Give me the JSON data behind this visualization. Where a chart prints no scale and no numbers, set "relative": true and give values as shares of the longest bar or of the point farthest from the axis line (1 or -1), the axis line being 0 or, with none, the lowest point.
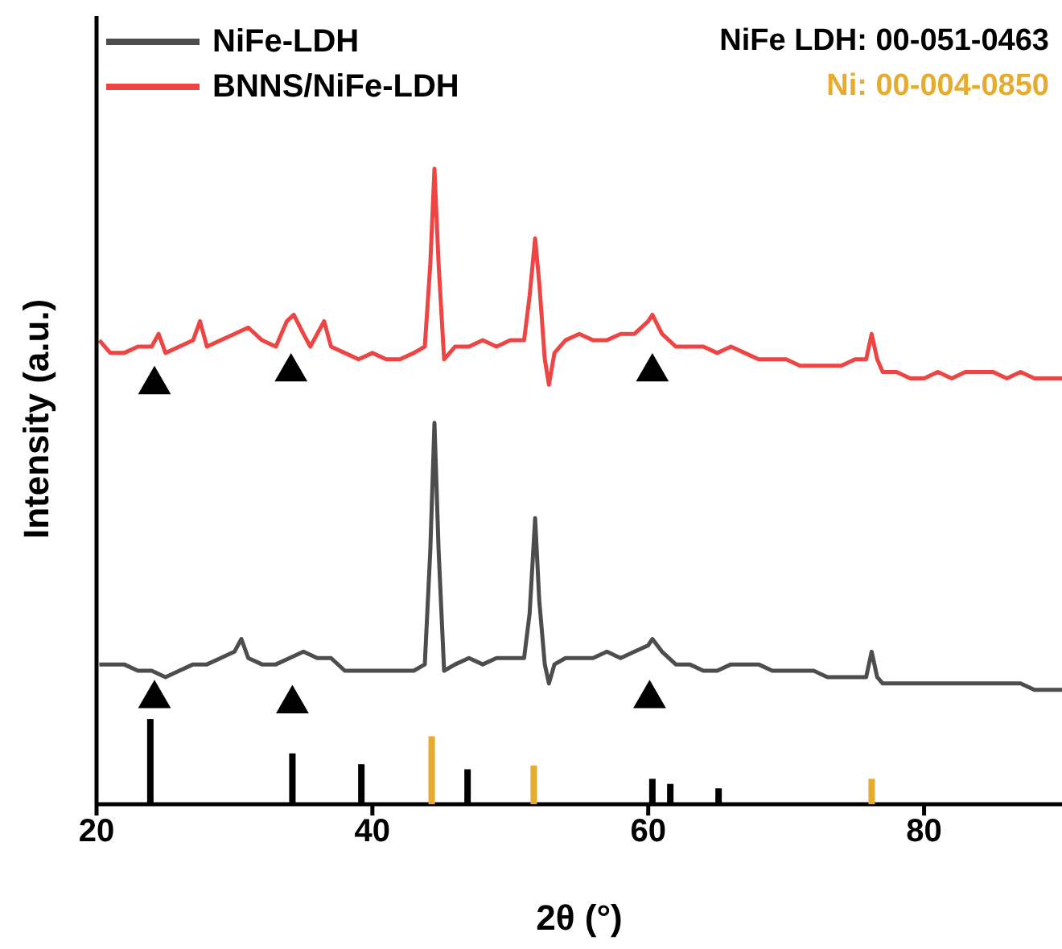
{
  "chart_data": {
    "type": "line",
    "relative": true,
    "xlabel": "2θ (°)",
    "ylabel": "Intensity (a.u.)",
    "xlim": [
      20,
      90
    ],
    "xticks": [
      20,
      40,
      60,
      80
    ],
    "legend": "top left",
    "grid": false,
    "series": [
      {
        "name": "NiFe-LDH",
        "color": "#4d4d4d",
        "x": [
          20.2,
          21,
          22,
          23,
          24,
          25,
          26,
          27,
          28,
          29,
          30,
          30.5,
          31,
          32,
          33,
          34,
          35,
          36,
          37,
          38,
          39,
          40,
          41,
          42,
          43,
          43.8,
          44.2,
          44.5,
          44.8,
          45.2,
          46,
          47,
          48,
          49,
          50,
          51,
          51.4,
          51.8,
          52.1,
          52.5,
          52.8,
          53.2,
          54,
          55,
          56,
          57,
          58,
          59,
          60,
          60.3,
          61,
          62,
          63,
          64,
          65,
          66,
          67,
          68,
          69,
          70,
          71,
          72,
          73,
          74,
          75,
          75.8,
          76.2,
          76.6,
          77,
          78,
          79,
          80,
          81,
          82,
          83,
          84,
          85,
          86,
          87,
          88,
          89,
          90
        ],
        "values": [
          0.22,
          0.22,
          0.22,
          0.21,
          0.21,
          0.2,
          0.21,
          0.22,
          0.22,
          0.23,
          0.24,
          0.26,
          0.23,
          0.22,
          0.22,
          0.23,
          0.24,
          0.23,
          0.23,
          0.21,
          0.21,
          0.21,
          0.21,
          0.21,
          0.21,
          0.22,
          0.4,
          0.6,
          0.4,
          0.21,
          0.22,
          0.23,
          0.22,
          0.23,
          0.23,
          0.23,
          0.3,
          0.45,
          0.32,
          0.22,
          0.19,
          0.22,
          0.23,
          0.23,
          0.23,
          0.24,
          0.23,
          0.24,
          0.25,
          0.26,
          0.24,
          0.22,
          0.22,
          0.21,
          0.21,
          0.22,
          0.22,
          0.22,
          0.21,
          0.21,
          0.21,
          0.21,
          0.2,
          0.2,
          0.2,
          0.2,
          0.24,
          0.2,
          0.19,
          0.19,
          0.19,
          0.19,
          0.19,
          0.19,
          0.19,
          0.19,
          0.19,
          0.19,
          0.19,
          0.18,
          0.18,
          0.18
        ]
      },
      {
        "name": "BNNS/NiFe-LDH",
        "color": "#ef4444",
        "x": [
          20.2,
          21,
          22,
          23,
          24,
          24.5,
          25,
          26,
          27,
          27.5,
          28,
          29,
          30,
          31,
          32,
          33,
          33.8,
          34.3,
          35,
          35.5,
          36.5,
          37,
          38,
          39,
          40,
          41,
          42,
          43,
          43.8,
          44.2,
          44.5,
          44.8,
          45.2,
          46,
          47,
          48,
          49,
          50,
          51,
          51.4,
          51.8,
          52.1,
          52.5,
          52.8,
          53.2,
          54,
          55,
          56,
          57,
          58,
          59,
          60,
          60.3,
          61,
          62,
          63,
          64,
          65,
          66,
          67,
          68,
          69,
          70,
          71,
          72,
          73,
          74,
          75,
          75.8,
          76.2,
          76.6,
          77,
          78,
          79,
          80,
          81,
          82,
          83,
          84,
          85,
          86,
          87,
          88,
          89,
          90
        ],
        "values": [
          0.73,
          0.71,
          0.71,
          0.72,
          0.72,
          0.74,
          0.71,
          0.72,
          0.73,
          0.76,
          0.72,
          0.73,
          0.74,
          0.75,
          0.73,
          0.72,
          0.76,
          0.77,
          0.74,
          0.72,
          0.76,
          0.72,
          0.71,
          0.7,
          0.71,
          0.7,
          0.7,
          0.71,
          0.72,
          0.85,
          1.0,
          0.85,
          0.7,
          0.72,
          0.72,
          0.73,
          0.72,
          0.73,
          0.73,
          0.8,
          0.89,
          0.82,
          0.7,
          0.66,
          0.71,
          0.73,
          0.74,
          0.73,
          0.73,
          0.74,
          0.74,
          0.76,
          0.77,
          0.74,
          0.72,
          0.72,
          0.72,
          0.71,
          0.72,
          0.71,
          0.7,
          0.7,
          0.7,
          0.69,
          0.69,
          0.69,
          0.69,
          0.7,
          0.7,
          0.74,
          0.7,
          0.68,
          0.68,
          0.67,
          0.67,
          0.68,
          0.67,
          0.68,
          0.68,
          0.68,
          0.67,
          0.68,
          0.67,
          0.67,
          0.67
        ]
      },
      {
        "type": "scatter",
        "marker": "triangle",
        "color": "#000000",
        "x": [
          24.2,
          34.2,
          60.1,
          24.2,
          34.1,
          60.3
        ],
        "values": [
          0.166,
          0.158,
          0.166,
          0.66,
          0.68,
          0.68
        ]
      },
      {
        "name": "NiFe LDH: 00-051-0463",
        "type": "bar",
        "color": "#000000",
        "x": [
          23.9,
          34.2,
          39.2,
          46.9,
          60.3,
          61.6,
          65.1
        ],
        "values": [
          0.134,
          0.08,
          0.063,
          0.055,
          0.04,
          0.032,
          0.025
        ]
      },
      {
        "name": "Ni: 00-004-0850",
        "type": "bar",
        "color": "#e5ac2f",
        "x": [
          44.3,
          51.7,
          76.2
        ],
        "values": [
          0.107,
          0.061,
          0.04
        ]
      }
    ]
  }
}
